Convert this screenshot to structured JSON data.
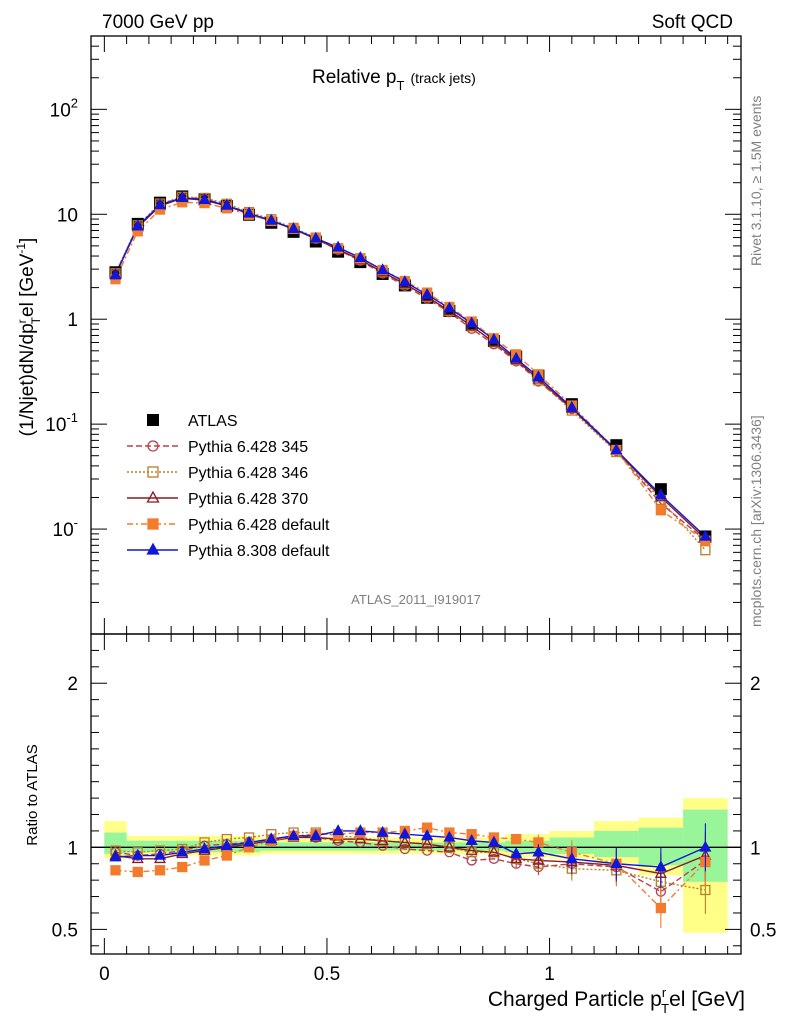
{
  "header": {
    "energy": "7000 GeV pp",
    "process": "Soft QCD",
    "rivet": "Rivet 3.1.10, ≥ 1.5M events",
    "source": "mcplots.cern.ch [arXiv:1306.3436]"
  },
  "chart_data": {
    "type": "scatter",
    "title_main": "Relative p",
    "title_sub": "T",
    "title_tail": "(track jets)",
    "analysis_label": "ATLAS_2011_I919017",
    "xlabel": "Charged Particle p",
    "xlabel_sup": "r",
    "xlabel_sub": "T",
    "xlabel_tail": "el [GeV]",
    "ylabel_top": "(1/Njet)dN/dp",
    "ylabel_top_sup": "r",
    "ylabel_top_sub": "T",
    "ylabel_top_tail": "el [GeV",
    "ylabel_top_exp": "-1",
    "ylabel_top_close": "]",
    "ylabel_bottom": "Ratio to ATLAS",
    "xlim": [
      -0.03,
      1.43
    ],
    "ylim_top": [
      0.001,
      500
    ],
    "y_log": true,
    "ylim_bottom": [
      0.35,
      2.3
    ],
    "x_ticks": [
      "0",
      "0.5",
      "1"
    ],
    "y_ticks_top": [
      "10",
      "2",
      "10",
      "1",
      "10",
      "-1",
      "10",
      "-"
    ],
    "y_tick_top_one": "1",
    "y_ticks_bottom": [
      "0.5",
      "1",
      "2"
    ],
    "legend_position": "bottom-left",
    "x": [
      0.025,
      0.075,
      0.125,
      0.175,
      0.225,
      0.275,
      0.325,
      0.375,
      0.425,
      0.475,
      0.525,
      0.575,
      0.625,
      0.675,
      0.725,
      0.775,
      0.825,
      0.875,
      0.925,
      0.975,
      1.05,
      1.15,
      1.25,
      1.35
    ],
    "atlas": [
      2.8,
      8.1,
      12.9,
      14.8,
      13.9,
      12.0,
      9.9,
      8.3,
      6.8,
      5.5,
      4.4,
      3.5,
      2.7,
      2.1,
      1.6,
      1.2,
      0.88,
      0.62,
      0.44,
      0.29,
      0.155,
      0.063,
      0.024,
      0.0085
    ],
    "series": [
      {
        "name": "Pythia 6.428 345",
        "color": "#b8404d",
        "marker": "open-circle",
        "dash": "6,3",
        "ratio": [
          0.97,
          0.95,
          0.96,
          0.98,
          1.01,
          1.02,
          1.03,
          1.05,
          1.07,
          1.06,
          1.04,
          1.03,
          1.01,
          0.99,
          0.98,
          0.97,
          0.92,
          0.93,
          0.9,
          0.88,
          0.9,
          0.88,
          0.73,
          0.92
        ]
      },
      {
        "name": "Pythia 6.428 346",
        "color": "#b7802a",
        "marker": "open-square",
        "dash": "2,2",
        "ratio": [
          0.98,
          0.97,
          0.98,
          0.99,
          1.03,
          1.05,
          1.06,
          1.08,
          1.09,
          1.09,
          1.07,
          1.06,
          1.04,
          1.03,
          1.02,
          1.0,
          0.97,
          0.97,
          0.93,
          0.9,
          0.87,
          0.86,
          0.79,
          0.74
        ]
      },
      {
        "name": "Pythia 6.428 370",
        "color": "#8b1a23",
        "marker": "open-triangle",
        "dash": "",
        "ratio": [
          0.95,
          0.93,
          0.93,
          0.96,
          0.98,
          1.0,
          1.02,
          1.04,
          1.06,
          1.06,
          1.05,
          1.05,
          1.04,
          1.03,
          1.02,
          1.0,
          0.98,
          0.97,
          0.93,
          0.92,
          0.91,
          0.89,
          0.84,
          0.95
        ]
      },
      {
        "name": "Pythia 6.428 default",
        "color": "#f37c2c",
        "marker": "filled-square",
        "dash": "6,3,2,3",
        "ratio": [
          0.86,
          0.85,
          0.86,
          0.88,
          0.92,
          0.95,
          1.0,
          1.04,
          1.07,
          1.08,
          1.08,
          1.09,
          1.09,
          1.1,
          1.12,
          1.09,
          1.08,
          1.06,
          1.05,
          1.03,
          0.97,
          0.9,
          0.63,
          0.91
        ]
      },
      {
        "name": "Pythia 8.308 default",
        "color": "#1017d9",
        "marker": "filled-triangle",
        "dash": "",
        "ratio": [
          0.94,
          0.95,
          0.95,
          0.97,
          0.99,
          1.01,
          1.03,
          1.05,
          1.07,
          1.07,
          1.1,
          1.1,
          1.09,
          1.08,
          1.07,
          1.06,
          1.04,
          1.03,
          0.96,
          0.97,
          0.93,
          0.9,
          0.88,
          1.0
        ]
      }
    ],
    "band_inner": [
      [
        0,
        0.05,
        0.96,
        1.09
      ],
      [
        0.05,
        0.35,
        0.97,
        1.04
      ],
      [
        0.35,
        0.9,
        0.98,
        1.03
      ],
      [
        0.9,
        1.0,
        0.97,
        1.04
      ],
      [
        1.0,
        1.1,
        0.96,
        1.06
      ],
      [
        1.1,
        1.2,
        0.94,
        1.1
      ],
      [
        1.2,
        1.3,
        0.89,
        1.12
      ],
      [
        1.3,
        1.4,
        0.79,
        1.23
      ]
    ],
    "band_outer": [
      [
        0,
        0.05,
        0.93,
        1.16
      ],
      [
        0.05,
        0.35,
        0.95,
        1.07
      ],
      [
        0.35,
        0.9,
        0.96,
        1.06
      ],
      [
        0.9,
        1.0,
        0.94,
        1.08
      ],
      [
        1.0,
        1.1,
        0.93,
        1.1
      ],
      [
        1.1,
        1.2,
        0.9,
        1.16
      ],
      [
        1.2,
        1.3,
        0.83,
        1.18
      ],
      [
        1.3,
        1.4,
        0.48,
        1.3
      ]
    ]
  }
}
